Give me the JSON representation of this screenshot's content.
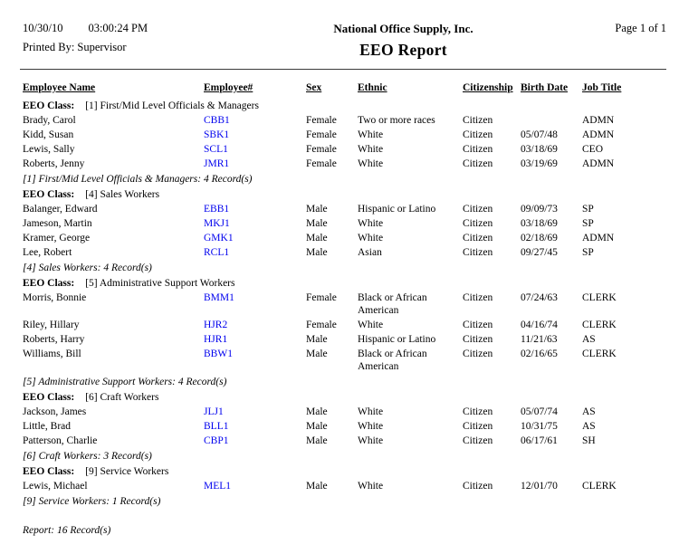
{
  "header": {
    "date": "10/30/10",
    "time": "03:00:24 PM",
    "printed_by_label": "Printed By:",
    "printed_by": "Supervisor",
    "company": "National Office Supply, Inc.",
    "report_title": "EEO Report",
    "page_info": "Page 1 of 1"
  },
  "table": {
    "columns": [
      "Employee Name",
      "Employee#",
      "Sex",
      "Ethnic",
      "Citizenship",
      "Birth Date",
      "Job Title"
    ],
    "groups": [
      {
        "class_label": "EEO Class:",
        "class_value": "[1] First/Mid Level Officials & Managers",
        "rows": [
          {
            "name": "Brady, Carol",
            "number": "CBB1",
            "sex": "Female",
            "ethnic": "Two or more races",
            "citizenship": "Citizen",
            "birth_date": "",
            "job_title": "ADMN"
          },
          {
            "name": "Kidd, Susan",
            "number": "SBK1",
            "sex": "Female",
            "ethnic": "White",
            "citizenship": "Citizen",
            "birth_date": "05/07/48",
            "job_title": "ADMN"
          },
          {
            "name": "Lewis, Sally",
            "number": "SCL1",
            "sex": "Female",
            "ethnic": "White",
            "citizenship": "Citizen",
            "birth_date": "03/18/69",
            "job_title": "CEO"
          },
          {
            "name": "Roberts, Jenny",
            "number": "JMR1",
            "sex": "Female",
            "ethnic": "White",
            "citizenship": "Citizen",
            "birth_date": "03/19/69",
            "job_title": "ADMN"
          }
        ],
        "summary": "[1] First/Mid Level Officials & Managers: 4 Record(s)"
      },
      {
        "class_label": "EEO Class:",
        "class_value": "[4] Sales Workers",
        "rows": [
          {
            "name": "Balanger, Edward",
            "number": "EBB1",
            "sex": "Male",
            "ethnic": "Hispanic or Latino",
            "citizenship": "Citizen",
            "birth_date": "09/09/73",
            "job_title": "SP"
          },
          {
            "name": "Jameson, Martin",
            "number": "MKJ1",
            "sex": "Male",
            "ethnic": "White",
            "citizenship": "Citizen",
            "birth_date": "03/18/69",
            "job_title": "SP"
          },
          {
            "name": "Kramer, George",
            "number": "GMK1",
            "sex": "Male",
            "ethnic": "White",
            "citizenship": "Citizen",
            "birth_date": "02/18/69",
            "job_title": "ADMN"
          },
          {
            "name": "Lee, Robert",
            "number": "RCL1",
            "sex": "Male",
            "ethnic": "Asian",
            "citizenship": "Citizen",
            "birth_date": "09/27/45",
            "job_title": "SP"
          }
        ],
        "summary": "[4] Sales Workers: 4 Record(s)"
      },
      {
        "class_label": "EEO Class:",
        "class_value": "[5] Administrative Support Workers",
        "rows": [
          {
            "name": "Morris, Bonnie",
            "number": "BMM1",
            "sex": "Female",
            "ethnic": "Black or African American",
            "citizenship": "Citizen",
            "birth_date": "07/24/63",
            "job_title": "CLERK"
          },
          {
            "name": "Riley, Hillary",
            "number": "HJR2",
            "sex": "Female",
            "ethnic": "White",
            "citizenship": "Citizen",
            "birth_date": "04/16/74",
            "job_title": "CLERK"
          },
          {
            "name": "Roberts, Harry",
            "number": "HJR1",
            "sex": "Male",
            "ethnic": "Hispanic or Latino",
            "citizenship": "Citizen",
            "birth_date": "11/21/63",
            "job_title": "AS"
          },
          {
            "name": "Williams, Bill",
            "number": "BBW1",
            "sex": "Male",
            "ethnic": "Black or African American",
            "citizenship": "Citizen",
            "birth_date": "02/16/65",
            "job_title": "CLERK"
          }
        ],
        "summary": "[5] Administrative Support Workers: 4 Record(s)"
      },
      {
        "class_label": "EEO Class:",
        "class_value": "[6] Craft Workers",
        "rows": [
          {
            "name": "Jackson, James",
            "number": "JLJ1",
            "sex": "Male",
            "ethnic": "White",
            "citizenship": "Citizen",
            "birth_date": "05/07/74",
            "job_title": "AS"
          },
          {
            "name": "Little, Brad",
            "number": "BLL1",
            "sex": "Male",
            "ethnic": "White",
            "citizenship": "Citizen",
            "birth_date": "10/31/75",
            "job_title": "AS"
          },
          {
            "name": "Patterson, Charlie",
            "number": "CBP1",
            "sex": "Male",
            "ethnic": "White",
            "citizenship": "Citizen",
            "birth_date": "06/17/61",
            "job_title": "SH"
          }
        ],
        "summary": "[6] Craft Workers: 3 Record(s)"
      },
      {
        "class_label": "EEO Class:",
        "class_value": "[9] Service Workers",
        "rows": [
          {
            "name": "Lewis, Michael",
            "number": "MEL1",
            "sex": "Male",
            "ethnic": "White",
            "citizenship": "Citizen",
            "birth_date": "12/01/70",
            "job_title": "CLERK"
          }
        ],
        "summary": "[9] Service Workers: 1 Record(s)"
      }
    ],
    "report_summary": "Report: 16 Record(s)"
  },
  "colors": {
    "link": "#0000EE",
    "text": "#000000",
    "background": "#FFFFFF"
  }
}
